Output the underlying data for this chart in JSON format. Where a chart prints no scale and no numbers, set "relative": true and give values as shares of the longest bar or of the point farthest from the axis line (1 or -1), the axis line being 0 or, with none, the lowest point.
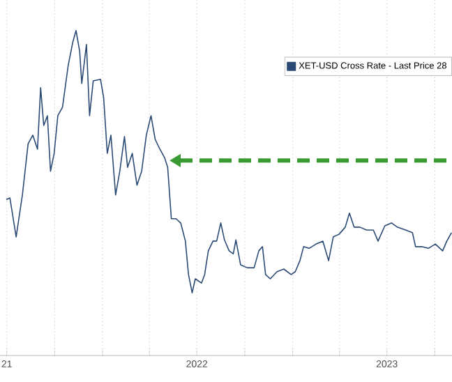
{
  "chart_data": {
    "type": "line",
    "relative": true,
    "x": [
      "2021-06-30",
      "2021-07-07",
      "2021-07-19",
      "2021-07-31",
      "2021-08-11",
      "2021-08-20",
      "2021-08-29",
      "2021-09-04",
      "2021-09-10",
      "2021-09-17",
      "2021-09-23",
      "2021-09-30",
      "2021-10-07",
      "2021-10-16",
      "2021-10-27",
      "2021-11-05",
      "2021-11-11",
      "2021-11-18",
      "2021-11-22",
      "2021-12-01",
      "2021-12-07",
      "2021-12-14",
      "2021-12-28",
      "2022-01-03",
      "2022-01-10",
      "2022-01-17",
      "2022-01-26",
      "2022-02-03",
      "2022-02-12",
      "2022-02-18",
      "2022-02-27",
      "2022-03-08",
      "2022-03-17",
      "2022-03-26",
      "2022-04-04",
      "2022-04-12",
      "2022-04-21",
      "2022-04-30",
      "2022-05-06",
      "2022-05-13",
      "2022-05-22",
      "2022-05-31",
      "2022-06-09",
      "2022-06-15",
      "2022-06-22",
      "2022-06-28",
      "2022-07-10",
      "2022-07-16",
      "2022-07-23",
      "2022-08-01",
      "2022-08-08",
      "2022-08-16",
      "2022-08-23",
      "2022-09-01",
      "2022-09-09",
      "2022-09-14",
      "2022-09-23",
      "2022-10-06",
      "2022-10-19",
      "2022-10-28",
      "2022-11-04",
      "2022-11-10",
      "2022-11-19",
      "2022-12-02",
      "2022-12-15",
      "2022-12-29",
      "2023-01-06",
      "2023-01-15",
      "2023-01-22",
      "2023-02-02",
      "2023-02-15",
      "2023-02-28",
      "2023-03-11",
      "2023-03-20",
      "2023-03-31",
      "2023-04-12",
      "2023-04-20",
      "2023-04-29",
      "2023-05-10",
      "2023-05-23",
      "2023-06-05",
      "2023-06-14",
      "2023-06-27",
      "2023-07-10",
      "2023-07-21",
      "2023-08-06",
      "2023-08-19",
      "2023-08-25",
      "2023-09-06",
      "2023-09-19",
      "2023-10-02",
      "2023-10-16",
      "2023-10-24",
      "2023-11-02"
    ],
    "series": [
      {
        "name": "XET-USD Cross Rate - Last Price 28",
        "color": "#2a4a75",
        "values": [
          0.48,
          0.485,
          0.365,
          0.494,
          0.652,
          0.678,
          0.635,
          0.824,
          0.708,
          0.738,
          0.567,
          0.622,
          0.738,
          0.764,
          0.893,
          0.966,
          1.0,
          0.936,
          0.837,
          0.957,
          0.738,
          0.845,
          0.85,
          0.794,
          0.622,
          0.678,
          0.494,
          0.567,
          0.674,
          0.579,
          0.622,
          0.524,
          0.567,
          0.678,
          0.738,
          0.665,
          0.635,
          0.609,
          0.579,
          0.421,
          0.421,
          0.408,
          0.352,
          0.249,
          0.193,
          0.236,
          0.223,
          0.249,
          0.322,
          0.352,
          0.352,
          0.408,
          0.356,
          0.322,
          0.313,
          0.356,
          0.279,
          0.27,
          0.27,
          0.322,
          0.335,
          0.249,
          0.236,
          0.258,
          0.266,
          0.249,
          0.258,
          0.292,
          0.335,
          0.33,
          0.343,
          0.352,
          0.292,
          0.365,
          0.373,
          0.395,
          0.438,
          0.395,
          0.395,
          0.386,
          0.386,
          0.352,
          0.399,
          0.408,
          0.395,
          0.386,
          0.378,
          0.335,
          0.335,
          0.33,
          0.343,
          0.322,
          0.352,
          0.378
        ]
      }
    ],
    "xlim": [
      "2021-06-18",
      "2023-11-03"
    ],
    "xticks": [
      {
        "value": "2021-07-01",
        "label": "21"
      },
      {
        "value": "2021-10-01",
        "label": null
      },
      {
        "value": "2022-01-01",
        "label": null
      },
      {
        "value": "2022-04-01",
        "label": null
      },
      {
        "value": "2022-07-01",
        "label": "2022"
      },
      {
        "value": "2022-10-01",
        "label": null
      },
      {
        "value": "2023-01-01",
        "label": null
      },
      {
        "value": "2023-04-01",
        "label": null
      },
      {
        "value": "2023-07-01",
        "label": "2023"
      },
      {
        "value": "2023-10-01",
        "label": null
      }
    ],
    "ref_lines": [
      {
        "axis": "y",
        "value": 0.6,
        "color": "#3a9a32",
        "line_style": "dashed"
      }
    ],
    "grid": true,
    "legend": "top right"
  }
}
